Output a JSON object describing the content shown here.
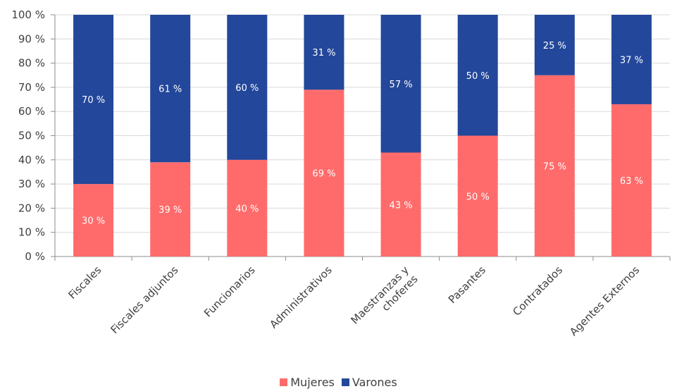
{
  "chart_data": {
    "type": "bar",
    "stacked": true,
    "percent": true,
    "categories": [
      "Fiscales",
      "Fiscales adjuntos",
      "Funcionarios",
      "Administrativos",
      "Maestranzas y\nchoferes",
      "Pasantes",
      "Contratados",
      "Agentes Externos"
    ],
    "series": [
      {
        "name": "Mujeres",
        "color": "#ff6b6b",
        "values": [
          30,
          39,
          40,
          69,
          43,
          50,
          75,
          63
        ],
        "labels": [
          "30 %",
          "39 %",
          "40 %",
          "69 %",
          "43 %",
          "50 %",
          "75 %",
          "63 %"
        ]
      },
      {
        "name": "Varones",
        "color": "#23479a",
        "values": [
          70,
          61,
          60,
          31,
          57,
          50,
          25,
          37
        ],
        "labels": [
          "70 %",
          "61 %",
          "60 %",
          "31 %",
          "57 %",
          "50 %",
          "25 %",
          "37 %"
        ]
      }
    ],
    "yticks": [
      "0 %",
      "10 %",
      "20 %",
      "30 %",
      "40 %",
      "50 %",
      "60 %",
      "70 %",
      "80 %",
      "90 %",
      "100 %"
    ],
    "ylim": [
      0,
      100
    ],
    "grid": true,
    "legend_position": "bottom"
  }
}
